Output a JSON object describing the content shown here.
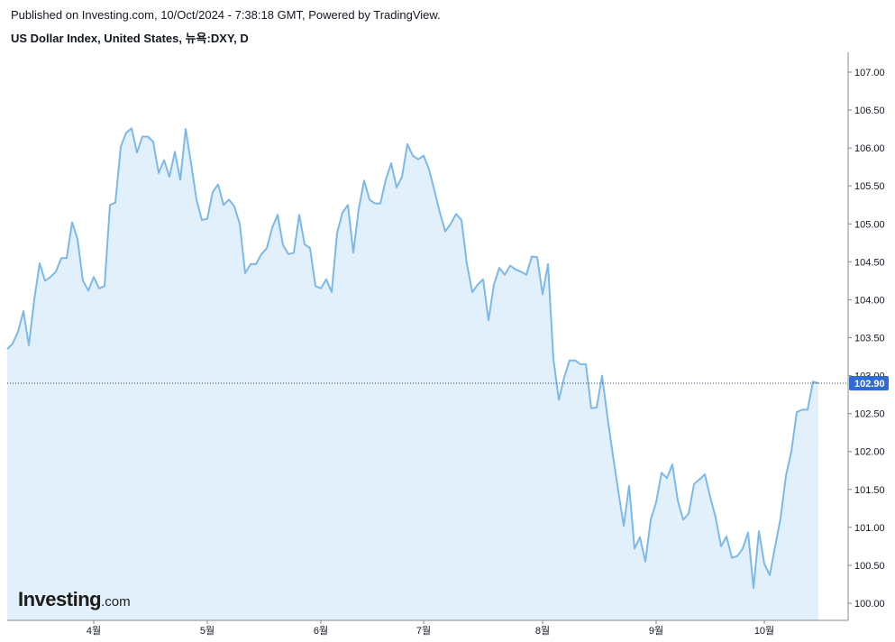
{
  "header": {
    "published": "Published on Investing.com, 10/Oct/2024 - 7:38:18 GMT, Powered by TradingView.",
    "title": "US Dollar Index, United States, 뉴욕:DXY, D"
  },
  "logo": {
    "main": "Investing",
    "suffix": ".com"
  },
  "colors": {
    "line": "#7db9e8",
    "area": "#e1f0fa",
    "axis": "#888888",
    "price_label_bg": "#2e6bd4",
    "dotted": "#2a3a5a"
  },
  "chart_data": {
    "type": "area",
    "title": "US Dollar Index, United States, 뉴욕:DXY, D",
    "xlabel": "",
    "ylabel": "",
    "ylim": [
      99.9,
      107.2
    ],
    "y_ticks": [
      "107.00",
      "106.50",
      "106.00",
      "105.50",
      "105.00",
      "104.50",
      "104.00",
      "103.50",
      "103.00",
      "102.50",
      "102.00",
      "101.50",
      "101.00",
      "100.50",
      "100.00"
    ],
    "x_ticks": [
      "4월",
      "5월",
      "6월",
      "7월",
      "8월",
      "9월",
      "10월"
    ],
    "x_tick_index": [
      16,
      37,
      58,
      77,
      99,
      120,
      140
    ],
    "last_value_label": "102.90",
    "last_value": 102.9,
    "grid": false,
    "series": [
      {
        "values": [
          103.35,
          103.42,
          103.58,
          103.85,
          103.4,
          104.0,
          104.48,
          104.25,
          104.3,
          104.37,
          104.55,
          104.55,
          105.02,
          104.8,
          104.25,
          104.12,
          104.3,
          104.15,
          104.18,
          105.25,
          105.28,
          106.02,
          106.2,
          106.26,
          105.94,
          106.15,
          106.15,
          106.08,
          105.67,
          105.84,
          105.62,
          105.95,
          105.58,
          106.25,
          105.8,
          105.32,
          105.05,
          105.07,
          105.42,
          105.52,
          105.25,
          105.32,
          105.23,
          105.0,
          104.35,
          104.47,
          104.47,
          104.6,
          104.68,
          104.95,
          105.12,
          104.72,
          104.6,
          104.62,
          105.12,
          104.73,
          104.68,
          104.18,
          104.15,
          104.27,
          104.1,
          104.88,
          105.15,
          105.25,
          104.62,
          105.2,
          105.57,
          105.32,
          105.27,
          105.27,
          105.58,
          105.8,
          105.48,
          105.62,
          106.05,
          105.9,
          105.85,
          105.9,
          105.72,
          105.44,
          105.15,
          104.9,
          105.0,
          105.13,
          105.05,
          104.47,
          104.1,
          104.2,
          104.27,
          103.73,
          104.2,
          104.42,
          104.33,
          104.45,
          104.4,
          104.37,
          104.33,
          104.57,
          104.56,
          104.07,
          104.47,
          103.22,
          102.68,
          102.98,
          103.2,
          103.2,
          103.15,
          103.15,
          102.57,
          102.58,
          103.0,
          102.45,
          101.95,
          101.48,
          101.02,
          101.55,
          100.72,
          100.87,
          100.55,
          101.1,
          101.33,
          101.72,
          101.65,
          101.83,
          101.35,
          101.1,
          101.18,
          101.57,
          101.63,
          101.7,
          101.4,
          101.13,
          100.75,
          100.88,
          100.6,
          100.62,
          100.72,
          100.93,
          100.2,
          100.95,
          100.52,
          100.37,
          100.75,
          101.12,
          101.68,
          102.0,
          102.52,
          102.55,
          102.55,
          102.92,
          102.9
        ]
      }
    ]
  }
}
